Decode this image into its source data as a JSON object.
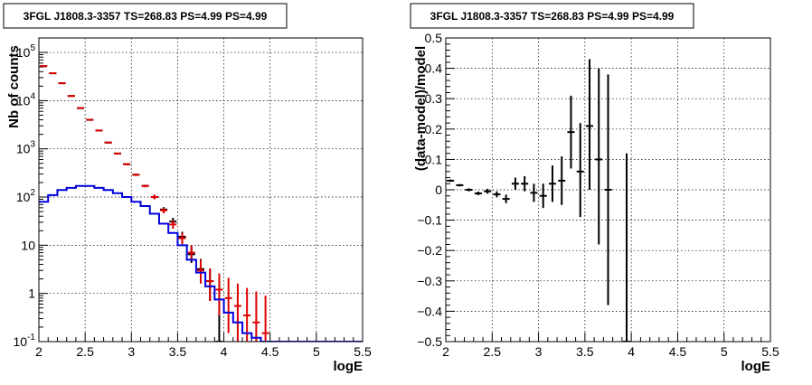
{
  "chart_data": [
    {
      "type": "scatter",
      "title": "3FGL J1808.3-3357 TS=268.83 PS=4.99 PS=4.99",
      "xlabel": "logE",
      "ylabel": "Nb of counts",
      "xlim": [
        2,
        5.5
      ],
      "ylim": [
        0.1,
        200000
      ],
      "yscale": "log",
      "grid": true,
      "x_ticks": [
        {
          "value": 2,
          "label": "2"
        },
        {
          "value": 2.5,
          "label": "2.5"
        },
        {
          "value": 3,
          "label": "3"
        },
        {
          "value": 3.5,
          "label": "3.5"
        },
        {
          "value": 4,
          "label": "4"
        },
        {
          "value": 4.5,
          "label": "4.5"
        },
        {
          "value": 5,
          "label": "5"
        },
        {
          "value": 5.5,
          "label": "5.5"
        }
      ],
      "y_ticks": [
        {
          "value": 0.1,
          "label": "10",
          "sup": "-1"
        },
        {
          "value": 1,
          "label": "1",
          "sup": ""
        },
        {
          "value": 10,
          "label": "10",
          "sup": ""
        },
        {
          "value": 100,
          "label": "10",
          "sup": "2"
        },
        {
          "value": 1000,
          "label": "10",
          "sup": "3"
        },
        {
          "value": 10000,
          "label": "10",
          "sup": "4"
        },
        {
          "value": 100000,
          "label": "10",
          "sup": "5"
        }
      ],
      "series": [
        {
          "kind": "points",
          "color": "#000000",
          "points": [
            {
              "x": 2.05,
              "y": 52000,
              "lo": 51500,
              "hi": 52500
            },
            {
              "x": 2.15,
              "y": 37000,
              "lo": 36600,
              "hi": 37400
            },
            {
              "x": 2.25,
              "y": 23000,
              "lo": 22700,
              "hi": 23300
            },
            {
              "x": 2.35,
              "y": 12500,
              "lo": 12300,
              "hi": 12700
            },
            {
              "x": 2.45,
              "y": 7000,
              "lo": 6850,
              "hi": 7150
            },
            {
              "x": 2.55,
              "y": 4000,
              "lo": 3900,
              "hi": 4100
            },
            {
              "x": 2.65,
              "y": 2400,
              "lo": 2330,
              "hi": 2470
            },
            {
              "x": 2.75,
              "y": 1350,
              "lo": 1300,
              "hi": 1400
            },
            {
              "x": 2.85,
              "y": 800,
              "lo": 770,
              "hi": 830
            },
            {
              "x": 2.95,
              "y": 480,
              "lo": 460,
              "hi": 500
            },
            {
              "x": 3.05,
              "y": 290,
              "lo": 275,
              "hi": 305
            },
            {
              "x": 3.15,
              "y": 170,
              "lo": 160,
              "hi": 180
            },
            {
              "x": 3.25,
              "y": 100,
              "lo": 90,
              "hi": 112
            },
            {
              "x": 3.35,
              "y": 55,
              "lo": 48,
              "hi": 62
            },
            {
              "x": 3.45,
              "y": 31,
              "lo": 26,
              "hi": 37
            },
            {
              "x": 3.55,
              "y": 15,
              "lo": 11.5,
              "hi": 19
            },
            {
              "x": 3.65,
              "y": 6.5,
              "lo": 4.3,
              "hi": 9.5
            },
            {
              "x": 3.75,
              "y": 3.2,
              "lo": 1.8,
              "hi": 5.2
            },
            {
              "x": 3.85,
              "y": 1.8,
              "lo": 0.7,
              "hi": 3.2
            },
            {
              "x": 3.95,
              "y": 0.1,
              "lo": 0.1,
              "hi": 2.0
            }
          ]
        },
        {
          "kind": "points",
          "color": "#dd0000",
          "points": [
            {
              "x": 2.05,
              "y": 52000,
              "lo": 51500,
              "hi": 52500
            },
            {
              "x": 2.15,
              "y": 37000,
              "lo": 36600,
              "hi": 37400
            },
            {
              "x": 2.25,
              "y": 23000,
              "lo": 22700,
              "hi": 23300
            },
            {
              "x": 2.35,
              "y": 12500,
              "lo": 12300,
              "hi": 12700
            },
            {
              "x": 2.45,
              "y": 7000,
              "lo": 6850,
              "hi": 7150
            },
            {
              "x": 2.55,
              "y": 4000,
              "lo": 3900,
              "hi": 4100
            },
            {
              "x": 2.65,
              "y": 2400,
              "lo": 2330,
              "hi": 2470
            },
            {
              "x": 2.75,
              "y": 1350,
              "lo": 1300,
              "hi": 1400
            },
            {
              "x": 2.85,
              "y": 800,
              "lo": 770,
              "hi": 830
            },
            {
              "x": 2.95,
              "y": 480,
              "lo": 460,
              "hi": 500
            },
            {
              "x": 3.05,
              "y": 290,
              "lo": 275,
              "hi": 305
            },
            {
              "x": 3.15,
              "y": 170,
              "lo": 160,
              "hi": 180
            },
            {
              "x": 3.25,
              "y": 100,
              "lo": 90,
              "hi": 112
            },
            {
              "x": 3.35,
              "y": 53,
              "lo": 46,
              "hi": 60
            },
            {
              "x": 3.45,
              "y": 27,
              "lo": 22,
              "hi": 33
            },
            {
              "x": 3.55,
              "y": 14,
              "lo": 10.5,
              "hi": 18
            },
            {
              "x": 3.65,
              "y": 7,
              "lo": 4.8,
              "hi": 10
            },
            {
              "x": 3.75,
              "y": 3.0,
              "lo": 1.6,
              "hi": 5.0
            },
            {
              "x": 3.85,
              "y": 1.8,
              "lo": 0.7,
              "hi": 3.3
            },
            {
              "x": 3.95,
              "y": 1.2,
              "lo": 0.35,
              "hi": 2.6
            },
            {
              "x": 4.05,
              "y": 0.8,
              "lo": 0.15,
              "hi": 2.1
            },
            {
              "x": 4.15,
              "y": 0.55,
              "lo": 0.1,
              "hi": 1.6
            },
            {
              "x": 4.25,
              "y": 0.35,
              "lo": 0.1,
              "hi": 1.3
            },
            {
              "x": 4.35,
              "y": 0.25,
              "lo": 0.1,
              "hi": 1.1
            },
            {
              "x": 4.45,
              "y": 0.15,
              "lo": 0.1,
              "hi": 0.9
            }
          ]
        },
        {
          "kind": "step",
          "color": "#0000dd",
          "bin_width": 0.1,
          "bins": [
            {
              "x": 2.05,
              "y": 80
            },
            {
              "x": 2.15,
              "y": 110
            },
            {
              "x": 2.25,
              "y": 140
            },
            {
              "x": 2.35,
              "y": 155
            },
            {
              "x": 2.45,
              "y": 170
            },
            {
              "x": 2.55,
              "y": 170
            },
            {
              "x": 2.65,
              "y": 155
            },
            {
              "x": 2.75,
              "y": 140
            },
            {
              "x": 2.85,
              "y": 120
            },
            {
              "x": 2.95,
              "y": 100
            },
            {
              "x": 3.05,
              "y": 80
            },
            {
              "x": 3.15,
              "y": 65
            },
            {
              "x": 3.25,
              "y": 45
            },
            {
              "x": 3.35,
              "y": 28
            },
            {
              "x": 3.45,
              "y": 18
            },
            {
              "x": 3.55,
              "y": 10
            },
            {
              "x": 3.65,
              "y": 5
            },
            {
              "x": 3.75,
              "y": 2.7
            },
            {
              "x": 3.85,
              "y": 1.4
            },
            {
              "x": 3.95,
              "y": 0.75
            },
            {
              "x": 4.05,
              "y": 0.4
            },
            {
              "x": 4.15,
              "y": 0.25
            },
            {
              "x": 4.25,
              "y": 0.15
            },
            {
              "x": 4.35,
              "y": 0.12
            },
            {
              "x": 4.45,
              "y": 0.1
            }
          ]
        }
      ]
    },
    {
      "type": "scatter",
      "title": "3FGL J1808.3-3357 TS=268.83 PS=4.99 PS=4.99",
      "xlabel": "logE",
      "ylabel": "(data-model)/model",
      "xlim": [
        2,
        5.5
      ],
      "ylim": [
        -0.5,
        0.5
      ],
      "yscale": "linear",
      "grid": true,
      "x_ticks": [
        {
          "value": 2,
          "label": "2"
        },
        {
          "value": 2.5,
          "label": "2.5"
        },
        {
          "value": 3,
          "label": "3"
        },
        {
          "value": 3.5,
          "label": "3.5"
        },
        {
          "value": 4,
          "label": "4"
        },
        {
          "value": 4.5,
          "label": "4.5"
        },
        {
          "value": 5,
          "label": "5"
        },
        {
          "value": 5.5,
          "label": "5.5"
        }
      ],
      "y_ticks": [
        {
          "value": 0.5,
          "label": "0.5"
        },
        {
          "value": 0.4,
          "label": "0.4"
        },
        {
          "value": 0.3,
          "label": "0.3"
        },
        {
          "value": 0.2,
          "label": "0.2"
        },
        {
          "value": 0.1,
          "label": "0.1"
        },
        {
          "value": 0,
          "label": "0"
        },
        {
          "value": -0.1,
          "label": "−0.1"
        },
        {
          "value": -0.2,
          "label": "−0.2"
        },
        {
          "value": -0.3,
          "label": "−0.3"
        },
        {
          "value": -0.4,
          "label": "−0.4"
        },
        {
          "value": -0.5,
          "label": "−0.5"
        }
      ],
      "series": [
        {
          "kind": "points",
          "color": "#000000",
          "points": [
            {
              "x": 2.05,
              "y": 0.03,
              "lo": 0.026,
              "hi": 0.034
            },
            {
              "x": 2.15,
              "y": 0.015,
              "lo": 0.011,
              "hi": 0.019
            },
            {
              "x": 2.25,
              "y": 0.0,
              "lo": -0.005,
              "hi": 0.005
            },
            {
              "x": 2.35,
              "y": -0.012,
              "lo": -0.018,
              "hi": -0.006
            },
            {
              "x": 2.45,
              "y": -0.005,
              "lo": -0.013,
              "hi": 0.003
            },
            {
              "x": 2.55,
              "y": -0.015,
              "lo": -0.025,
              "hi": -0.005
            },
            {
              "x": 2.65,
              "y": -0.03,
              "lo": -0.044,
              "hi": -0.016
            },
            {
              "x": 2.75,
              "y": 0.02,
              "lo": 0.0,
              "hi": 0.04
            },
            {
              "x": 2.85,
              "y": 0.02,
              "lo": -0.005,
              "hi": 0.045
            },
            {
              "x": 2.95,
              "y": -0.01,
              "lo": -0.04,
              "hi": 0.02
            },
            {
              "x": 3.05,
              "y": -0.02,
              "lo": -0.06,
              "hi": 0.02
            },
            {
              "x": 3.15,
              "y": 0.02,
              "lo": -0.04,
              "hi": 0.08
            },
            {
              "x": 3.25,
              "y": 0.03,
              "lo": -0.05,
              "hi": 0.11
            },
            {
              "x": 3.35,
              "y": 0.19,
              "lo": 0.07,
              "hi": 0.31
            },
            {
              "x": 3.45,
              "y": 0.06,
              "lo": -0.09,
              "hi": 0.22
            },
            {
              "x": 3.55,
              "y": 0.21,
              "lo": 0.0,
              "hi": 0.43
            },
            {
              "x": 3.65,
              "y": 0.1,
              "lo": -0.18,
              "hi": 0.4
            },
            {
              "x": 3.75,
              "y": 0.0,
              "lo": -0.38,
              "hi": 0.38
            },
            {
              "x": 3.95,
              "y": -0.5,
              "lo": -0.5,
              "hi": 0.12
            }
          ]
        }
      ]
    }
  ]
}
